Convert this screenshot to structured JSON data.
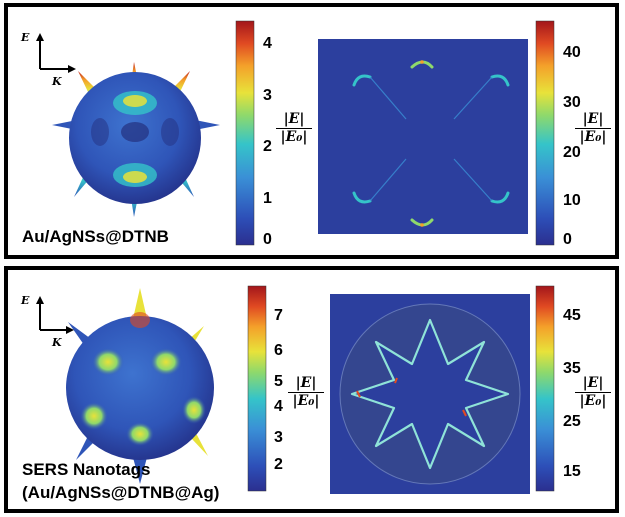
{
  "panels": [
    {
      "sample_label": "Au/AgNSs@DTNB",
      "field_label": {
        "num": "|E|",
        "den": "|E₀|"
      },
      "axes": {
        "e": "E",
        "k": "K"
      },
      "scale_3d": {
        "ticks": [
          "4",
          "3",
          "2",
          "1",
          "0"
        ],
        "min": 0,
        "max": 4.3
      },
      "scale_2d": {
        "ticks": [
          "40",
          "30",
          "20",
          "10",
          "0"
        ],
        "min": 0,
        "max": 44
      }
    },
    {
      "sample_label_line1": "SERS Nanotags",
      "sample_label_line2": "(Au/AgNSs@DTNB@Ag)",
      "field_label": {
        "num": "|E|",
        "den": "|E₀|"
      },
      "axes": {
        "e": "E",
        "k": "K"
      },
      "scale_3d": {
        "ticks": [
          "7",
          "6",
          "5",
          "4",
          "3",
          "2"
        ],
        "min": 1.3,
        "max": 7.8
      },
      "scale_2d": {
        "ticks": [
          "45",
          "35",
          "25",
          "15"
        ],
        "min": 10,
        "max": 49
      }
    }
  ],
  "colors": {
    "colormap": [
      "#2b2f8f",
      "#2d4fb8",
      "#3a8fd6",
      "#35c4c9",
      "#8fd96b",
      "#e8e23a",
      "#f4a12a",
      "#e04a22",
      "#a3161b"
    ],
    "field_bg": "#2c3f9e",
    "particle_body": "#2f55b8"
  }
}
